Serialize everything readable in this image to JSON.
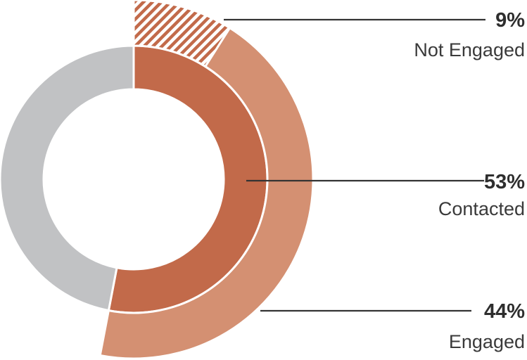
{
  "chart_data": {
    "type": "pie",
    "rings": [
      {
        "ring": "inner",
        "slices": [
          {
            "key": "contacted",
            "label": "Contacted",
            "value": 53,
            "percent_label": "53%",
            "color": "#c26a4a"
          },
          {
            "key": "remainder",
            "label": "",
            "value": 47,
            "percent_label": "",
            "color": "#c1c2c4"
          }
        ]
      },
      {
        "ring": "outer",
        "parent": "contacted",
        "slices": [
          {
            "key": "not_engaged",
            "label": "Not Engaged",
            "value": 9,
            "percent_label": "9%",
            "color": "#c26a4a",
            "pattern": "hatched"
          },
          {
            "key": "engaged",
            "label": "Engaged",
            "value": 44,
            "percent_label": "44%",
            "color": "#d49072"
          }
        ]
      }
    ],
    "title": "",
    "legend": "none",
    "colors": {
      "contacted": "#c26a4a",
      "engaged": "#d49072",
      "not_engaged_hatch": "#c26a4a",
      "remainder": "#c1c2c4",
      "leader_line": "#333333"
    }
  },
  "callouts": [
    {
      "key": "not_engaged",
      "percent": "9%",
      "label": "Not Engaged"
    },
    {
      "key": "contacted",
      "percent": "53%",
      "label": "Contacted"
    },
    {
      "key": "engaged",
      "percent": "44%",
      "label": "Engaged"
    }
  ]
}
